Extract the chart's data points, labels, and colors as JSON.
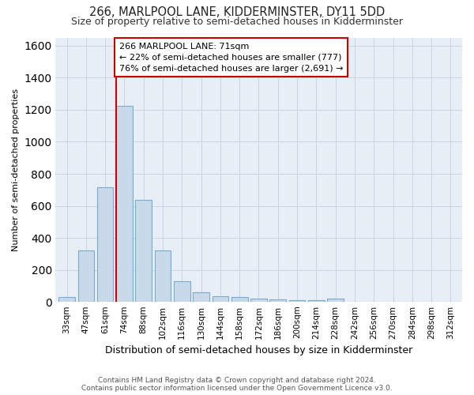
{
  "title": "266, MARLPOOL LANE, KIDDERMINSTER, DY11 5DD",
  "subtitle": "Size of property relative to semi-detached houses in Kidderminster",
  "xlabel": "Distribution of semi-detached houses by size in Kidderminster",
  "ylabel": "Number of semi-detached properties",
  "categories": [
    "33sqm",
    "47sqm",
    "61sqm",
    "74sqm",
    "88sqm",
    "102sqm",
    "116sqm",
    "130sqm",
    "144sqm",
    "158sqm",
    "172sqm",
    "186sqm",
    "200sqm",
    "214sqm",
    "228sqm",
    "242sqm",
    "256sqm",
    "270sqm",
    "284sqm",
    "298sqm",
    "312sqm"
  ],
  "values": [
    33,
    323,
    716,
    1222,
    635,
    320,
    128,
    62,
    35,
    30,
    23,
    15,
    13,
    10,
    20,
    0,
    0,
    0,
    0,
    0,
    0
  ],
  "bar_color": "#c8daea",
  "bar_edge_color": "#7aabcc",
  "vline_color": "#cc0000",
  "annotation_line1": "266 MARLPOOL LANE: 71sqm",
  "annotation_line2": "← 22% of semi-detached houses are smaller (777)",
  "annotation_line3": "76% of semi-detached houses are larger (2,691) →",
  "annotation_box_facecolor": "#ffffff",
  "annotation_box_edgecolor": "#cc0000",
  "ylim": [
    0,
    1650
  ],
  "yticks": [
    0,
    200,
    400,
    600,
    800,
    1000,
    1200,
    1400,
    1600
  ],
  "grid_color": "#c8d4e0",
  "bg_color": "#e8eef5",
  "footer_line1": "Contains HM Land Registry data © Crown copyright and database right 2024.",
  "footer_line2": "Contains public sector information licensed under the Open Government Licence v3.0.",
  "title_fontsize": 10.5,
  "subtitle_fontsize": 9,
  "xlabel_fontsize": 9,
  "ylabel_fontsize": 8,
  "tick_fontsize": 7.5,
  "ann_fontsize": 8,
  "footer_fontsize": 6.5
}
